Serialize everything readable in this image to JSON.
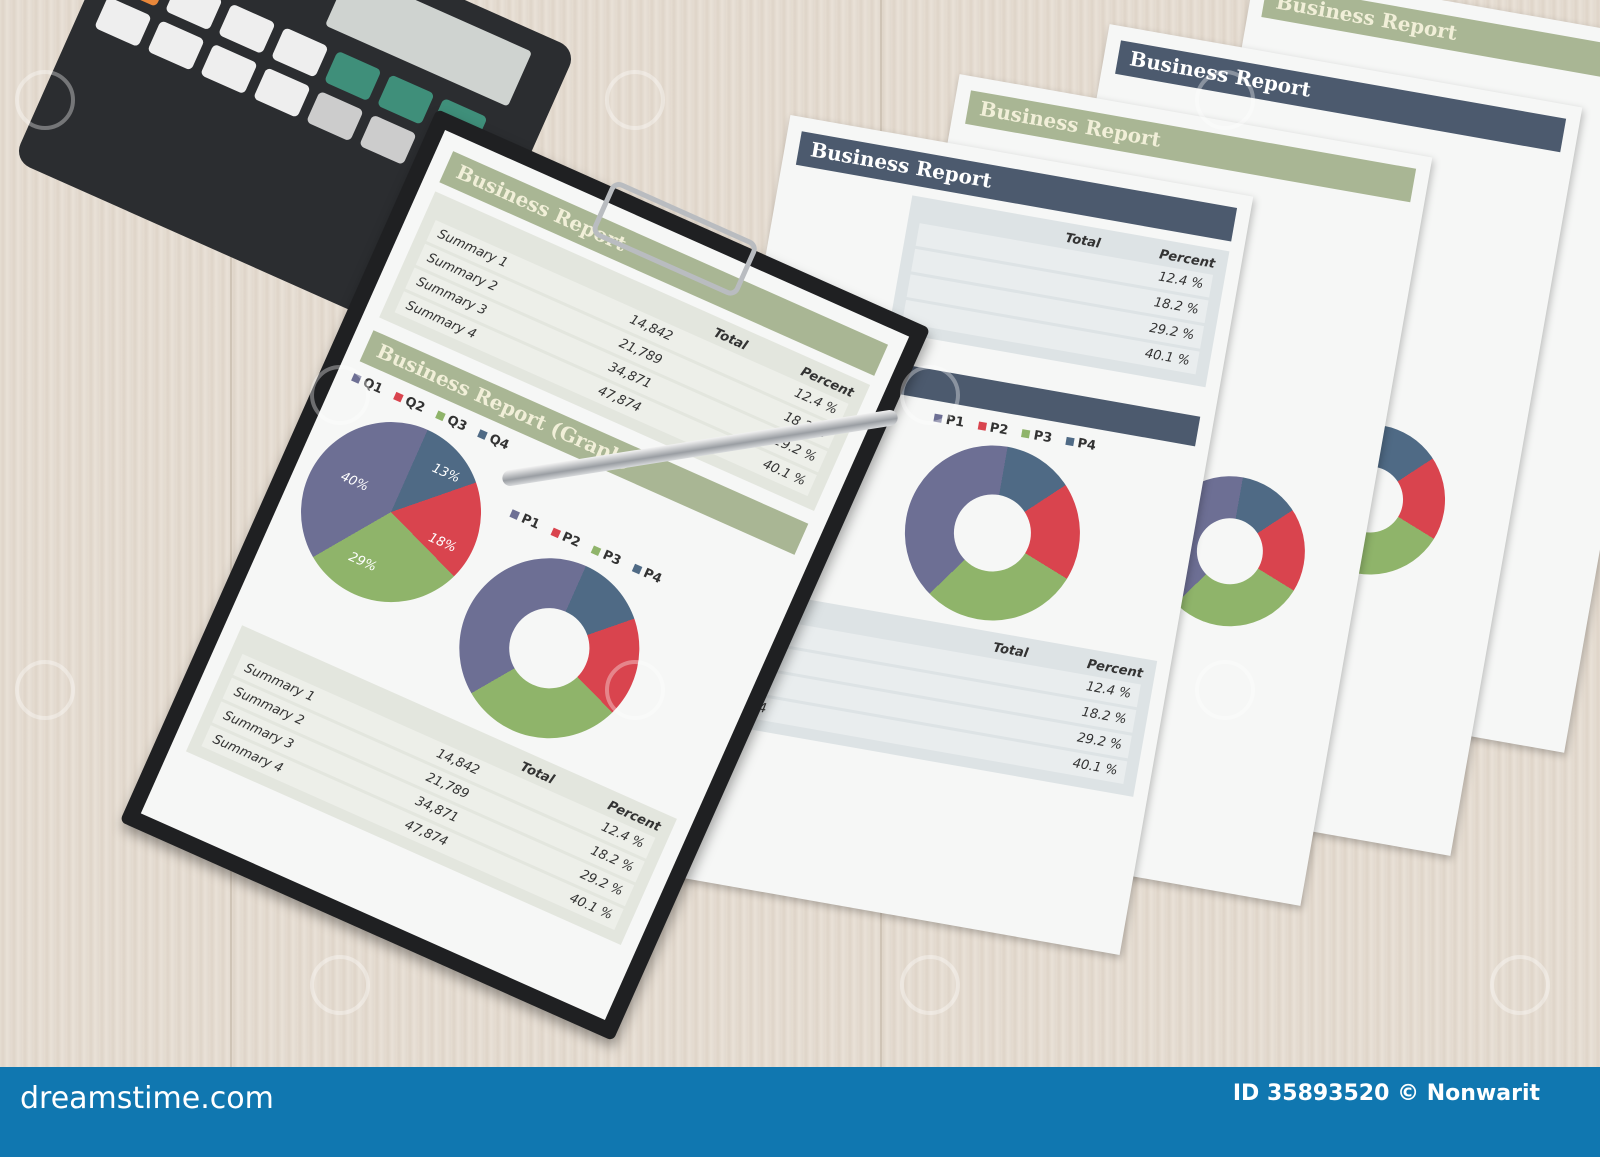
{
  "report": {
    "title": "Business Report",
    "graph_title": "Business Report (Graph)",
    "summaries": [
      "Summary 1",
      "Summary 2",
      "Summary 3",
      "Summary 4"
    ],
    "total_label": "Total",
    "percent_label": "Percent",
    "totals": [
      "14,842",
      "21,789",
      "34,871",
      "47,874"
    ],
    "percents": [
      "12.4 %",
      "18.2 %",
      "29.2 %",
      "40.1 %"
    ],
    "legend_q": [
      "Q1",
      "Q2",
      "Q3",
      "Q4"
    ],
    "legend_p": [
      "P1",
      "P2",
      "P3",
      "P4"
    ],
    "pie_labels": [
      "40%",
      "13%",
      "18%",
      "29%"
    ]
  },
  "colors": {
    "slice1": "#6d6f94",
    "slice2": "#4f6a85",
    "slice3": "#d9444e",
    "slice4": "#8fb46a",
    "footer": "#1077b0"
  },
  "footer": {
    "brand": "dreamstime.com",
    "credit": "ID 35893520 © Nonwarit"
  }
}
